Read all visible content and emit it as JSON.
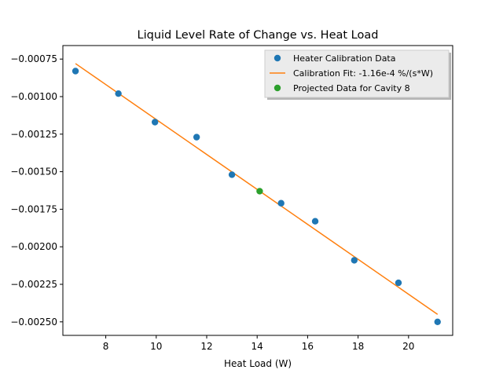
{
  "chart_data": {
    "type": "scatter",
    "title": "Liquid Level Rate of Change vs. Heat Load",
    "xlabel": "Heat Load (W)",
    "ylabel": "",
    "xlim": [
      6.3,
      21.75
    ],
    "ylim": [
      -0.00259,
      -0.00066
    ],
    "xticks": [
      8,
      10,
      12,
      14,
      16,
      18,
      20
    ],
    "xtick_labels": [
      "8",
      "10",
      "12",
      "14",
      "16",
      "18",
      "20"
    ],
    "yticks": [
      -0.00075,
      -0.001,
      -0.00125,
      -0.0015,
      -0.00175,
      -0.002,
      -0.00225,
      -0.0025
    ],
    "ytick_labels": [
      "−0.00075",
      "−0.00100",
      "−0.00125",
      "−0.00150",
      "−0.00175",
      "−0.00200",
      "−0.00225",
      "−0.00250"
    ],
    "grid": false,
    "legend_position": "top-right",
    "series": [
      {
        "name": "Heater Calibration Data",
        "kind": "scatter",
        "color": "#1f77b4",
        "x": [
          6.8,
          8.5,
          9.95,
          11.6,
          13.0,
          14.95,
          16.3,
          17.85,
          19.6,
          21.15
        ],
        "y": [
          -0.00083,
          -0.00098,
          -0.00117,
          -0.00127,
          -0.00152,
          -0.00171,
          -0.00183,
          -0.00209,
          -0.00224,
          -0.0025
        ]
      },
      {
        "name": "Calibration Fit:  -1.16e-4 %/(s*W)",
        "kind": "line",
        "color": "#ff7f0e",
        "x": [
          6.8,
          21.15
        ],
        "y": [
          -0.00078,
          -0.00245
        ]
      },
      {
        "name": "Projected Data for Cavity 8",
        "kind": "scatter",
        "color": "#2ca02c",
        "x": [
          14.1
        ],
        "y": [
          -0.00163
        ]
      }
    ]
  }
}
